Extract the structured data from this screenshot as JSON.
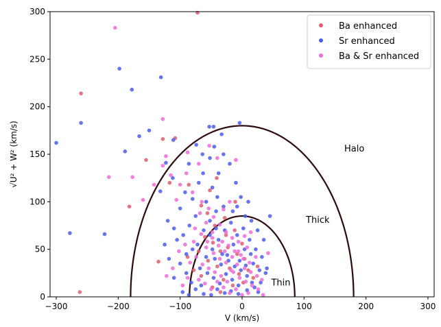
{
  "chart_data": {
    "type": "scatter",
    "title": "",
    "xlabel": "V (km/s)",
    "ylabel": "√U² + W² (km/s)",
    "xlim": [
      -310,
      310
    ],
    "ylim": [
      0,
      300
    ],
    "xticks": [
      -300,
      -200,
      -100,
      0,
      100,
      200,
      300
    ],
    "yticks": [
      0,
      50,
      100,
      150,
      200,
      250,
      300
    ],
    "grid": false,
    "legend_position": "top-right",
    "series": [
      {
        "name": "Ba enhanced",
        "color": "#e05c6e",
        "points": [
          [
            -72,
            299
          ],
          [
            -260,
            214
          ],
          [
            -108,
            167
          ],
          [
            -128,
            166
          ],
          [
            -155,
            144
          ],
          [
            -182,
            95
          ],
          [
            -262,
            5
          ],
          [
            -135,
            37
          ],
          [
            -117,
            120
          ],
          [
            -86,
            118
          ],
          [
            -52,
            112
          ],
          [
            -41,
            125
          ],
          [
            -66,
            96
          ],
          [
            -56,
            88
          ],
          [
            -44,
            75
          ],
          [
            -28,
            83
          ],
          [
            -12,
            70
          ],
          [
            -60,
            63
          ],
          [
            -47,
            57
          ],
          [
            -35,
            48
          ],
          [
            -23,
            52
          ],
          [
            -8,
            45
          ],
          [
            4,
            40
          ],
          [
            -55,
            38
          ],
          [
            -40,
            32
          ],
          [
            -20,
            30
          ],
          [
            -5,
            24
          ],
          [
            10,
            28
          ],
          [
            -66,
            22
          ],
          [
            -30,
            18
          ],
          [
            -15,
            12
          ],
          [
            2,
            15
          ],
          [
            18,
            20
          ],
          [
            -48,
            10
          ],
          [
            -35,
            5
          ],
          [
            -78,
            28
          ],
          [
            -88,
            42
          ],
          [
            25,
            32
          ],
          [
            -11,
            100
          ],
          [
            -70,
            48
          ],
          [
            -26,
            65
          ],
          [
            0,
            56
          ]
        ]
      },
      {
        "name": "Sr enhanced",
        "color": "#4c5cf0",
        "points": [
          [
            -300,
            162
          ],
          [
            -260,
            183
          ],
          [
            -198,
            240
          ],
          [
            -178,
            218
          ],
          [
            -131,
            231
          ],
          [
            -166,
            169
          ],
          [
            -189,
            153
          ],
          [
            -123,
            141
          ],
          [
            -111,
            165
          ],
          [
            -53,
            179
          ],
          [
            -46,
            179
          ],
          [
            -4,
            183
          ],
          [
            -278,
            67
          ],
          [
            -222,
            66
          ],
          [
            -150,
            175
          ],
          [
            -132,
            111
          ],
          [
            -112,
            125
          ],
          [
            -100,
            93
          ],
          [
            -92,
            110
          ],
          [
            -80,
            103
          ],
          [
            -70,
            120
          ],
          [
            -63,
            130
          ],
          [
            -52,
            146
          ],
          [
            -45,
            158
          ],
          [
            -33,
            171
          ],
          [
            -20,
            140
          ],
          [
            -10,
            120
          ],
          [
            -2,
            105
          ],
          [
            -40,
            105
          ],
          [
            -30,
            95
          ],
          [
            -15,
            90
          ],
          [
            5,
            85
          ],
          [
            15,
            80
          ],
          [
            25,
            70
          ],
          [
            35,
            60
          ],
          [
            45,
            85
          ],
          [
            -75,
            85
          ],
          [
            -85,
            75
          ],
          [
            -95,
            65
          ],
          [
            -105,
            60
          ],
          [
            -125,
            55
          ],
          [
            -118,
            40
          ],
          [
            -100,
            35
          ],
          [
            -90,
            25
          ],
          [
            -82,
            15
          ],
          [
            -75,
            8
          ],
          [
            -62,
            3
          ],
          [
            -50,
            2
          ],
          [
            -40,
            8
          ],
          [
            -28,
            4
          ],
          [
            -18,
            6
          ],
          [
            -6,
            3
          ],
          [
            8,
            7
          ],
          [
            20,
            10
          ],
          [
            30,
            15
          ],
          [
            38,
            25
          ],
          [
            -68,
            30
          ],
          [
            -58,
            42
          ],
          [
            -48,
            50
          ],
          [
            -38,
            60
          ],
          [
            -28,
            70
          ],
          [
            -18,
            78
          ],
          [
            -8,
            65
          ],
          [
            2,
            72
          ],
          [
            12,
            60
          ],
          [
            22,
            50
          ],
          [
            32,
            42
          ],
          [
            -72,
            55
          ],
          [
            -62,
            70
          ],
          [
            -52,
            80
          ],
          [
            -42,
            90
          ],
          [
            -32,
            45
          ],
          [
            -22,
            38
          ],
          [
            -12,
            32
          ],
          [
            -2,
            28
          ],
          [
            8,
            22
          ],
          [
            18,
            35
          ],
          [
            28,
            28
          ],
          [
            -56,
            25
          ],
          [
            -46,
            20
          ],
          [
            -36,
            14
          ],
          [
            -26,
            24
          ],
          [
            -16,
            18
          ],
          [
            -6,
            12
          ],
          [
            4,
            50
          ],
          [
            14,
            45
          ],
          [
            -66,
            12
          ],
          [
            -80,
            50
          ],
          [
            -90,
            45
          ],
          [
            -44,
            40
          ],
          [
            -34,
            34
          ],
          [
            -24,
            44
          ],
          [
            -14,
            55
          ],
          [
            -4,
            38
          ],
          [
            6,
            33
          ],
          [
            16,
            15
          ],
          [
            26,
            5
          ],
          [
            -58,
            100
          ],
          [
            -48,
            115
          ],
          [
            -38,
            130
          ],
          [
            -8,
            95
          ],
          [
            10,
            100
          ],
          [
            -110,
            72
          ],
          [
            -120,
            80
          ],
          [
            -86,
            140
          ],
          [
            -74,
            160
          ],
          [
            -64,
            150
          ],
          [
            -30,
            150
          ],
          [
            -96,
            5
          ],
          [
            -86,
            2
          ],
          [
            -110,
            20
          ],
          [
            40,
            30
          ],
          [
            -52,
            65
          ],
          [
            -42,
            72
          ]
        ]
      },
      {
        "name": "Ba & Sr enhanced",
        "color": "#f06ad8",
        "points": [
          [
            -205,
            283
          ],
          [
            -128,
            187
          ],
          [
            -215,
            126
          ],
          [
            -177,
            126
          ],
          [
            -123,
            148
          ],
          [
            -128,
            138
          ],
          [
            -115,
            128
          ],
          [
            -88,
            152
          ],
          [
            -53,
            159
          ],
          [
            -40,
            146
          ],
          [
            -10,
            144
          ],
          [
            -160,
            102
          ],
          [
            -142,
            118
          ],
          [
            -100,
            118
          ],
          [
            -80,
            110
          ],
          [
            -65,
            100
          ],
          [
            -54,
            93
          ],
          [
            -46,
            84
          ],
          [
            -36,
            76
          ],
          [
            -26,
            68
          ],
          [
            -16,
            62
          ],
          [
            -6,
            58
          ],
          [
            4,
            64
          ],
          [
            14,
            68
          ],
          [
            -76,
            72
          ],
          [
            -66,
            66
          ],
          [
            -56,
            58
          ],
          [
            -46,
            46
          ],
          [
            -36,
            40
          ],
          [
            -26,
            36
          ],
          [
            -16,
            42
          ],
          [
            -6,
            48
          ],
          [
            4,
            30
          ],
          [
            14,
            26
          ],
          [
            24,
            22
          ],
          [
            -84,
            36
          ],
          [
            -74,
            42
          ],
          [
            -64,
            34
          ],
          [
            -54,
            30
          ],
          [
            -44,
            26
          ],
          [
            -34,
            22
          ],
          [
            -24,
            16
          ],
          [
            -14,
            26
          ],
          [
            -4,
            20
          ],
          [
            6,
            16
          ],
          [
            16,
            12
          ],
          [
            26,
            8
          ],
          [
            -70,
            18
          ],
          [
            -60,
            14
          ],
          [
            -50,
            8
          ],
          [
            -40,
            16
          ],
          [
            -30,
            10
          ],
          [
            -20,
            4
          ],
          [
            -10,
            8
          ],
          [
            0,
            2
          ],
          [
            10,
            4
          ],
          [
            -92,
            55
          ],
          [
            -102,
            48
          ],
          [
            -112,
            30
          ],
          [
            -122,
            22
          ],
          [
            -58,
            52
          ],
          [
            -48,
            62
          ],
          [
            -38,
            54
          ],
          [
            -28,
            48
          ],
          [
            -18,
            28
          ],
          [
            -8,
            34
          ],
          [
            2,
            40
          ],
          [
            12,
            36
          ],
          [
            22,
            42
          ],
          [
            32,
            18
          ],
          [
            -68,
            88
          ],
          [
            -58,
            78
          ],
          [
            -48,
            68
          ],
          [
            -32,
            58
          ],
          [
            -22,
            54
          ],
          [
            -12,
            48
          ],
          [
            -2,
            44
          ],
          [
            8,
            52
          ],
          [
            -78,
            58
          ],
          [
            -88,
            20
          ],
          [
            -96,
            12
          ],
          [
            -30,
            92
          ],
          [
            -20,
            100
          ],
          [
            -90,
            130
          ],
          [
            -70,
            140
          ],
          [
            34,
            2
          ],
          [
            42,
            46
          ],
          [
            -106,
            102
          ]
        ]
      }
    ],
    "boundaries": [
      {
        "label": "Halo",
        "velocity": 180,
        "center_v": 0
      },
      {
        "label": "Thick",
        "velocity": 85,
        "center_v": 0
      }
    ],
    "annotations": [
      {
        "text": "Halo",
        "x": 165,
        "y": 153
      },
      {
        "text": "Thick",
        "x": 103,
        "y": 78
      },
      {
        "text": "Thin",
        "x": 47,
        "y": 12
      }
    ]
  }
}
